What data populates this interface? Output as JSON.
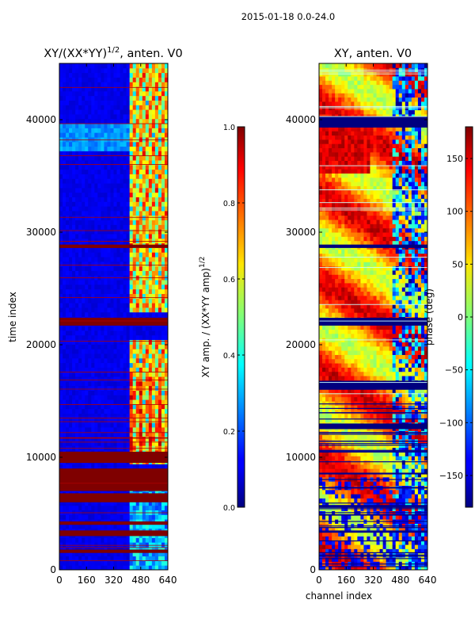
{
  "chart_data": [
    {
      "type": "heatmap",
      "title": "XY/(XX*YY)",
      "title_sup": "1/2",
      "title_suffix": ", anten. V0",
      "xlabel": "",
      "ylabel": "time index",
      "xlim": [
        0,
        640
      ],
      "ylim": [
        0,
        45000
      ],
      "xticks": [
        "0",
        "160",
        "320",
        "480",
        "640"
      ],
      "yticks": [
        "0",
        "10000",
        "20000",
        "30000",
        "40000"
      ],
      "colorbar": {
        "label": "XY amp. / (XX*YY amp)",
        "label_sup": "1/2",
        "range": [
          0.0,
          1.0
        ],
        "ticks": [
          "0.0",
          "0.2",
          "0.4",
          "0.6",
          "0.8",
          "1.0"
        ],
        "colormap": "jet"
      },
      "flagged_time_bands": [
        [
          21700,
          22400
        ],
        [
          28600,
          28900
        ],
        [
          9500,
          10500
        ],
        [
          7000,
          9000
        ],
        [
          6000,
          6800
        ],
        [
          3000,
          3500
        ],
        [
          4000,
          4300
        ],
        [
          1500,
          1800
        ]
      ]
    },
    {
      "type": "heatmap",
      "title": "XY, anten. V0",
      "xlabel": "channel index",
      "ylabel": "",
      "xlim": [
        0,
        640
      ],
      "ylim": [
        0,
        45000
      ],
      "xticks": [
        "0",
        "160",
        "320",
        "480",
        "640"
      ],
      "yticks": [
        "0",
        "10000",
        "20000",
        "30000",
        "40000"
      ],
      "colorbar": {
        "label": "phase (deg)",
        "range": [
          -180,
          180
        ],
        "ticks": [
          "−150",
          "−100",
          "−50",
          "0",
          "50",
          "100",
          "150"
        ],
        "colormap": "jet"
      }
    }
  ],
  "figure": {
    "suptitle": "2015-01-18 0.0-24.0"
  }
}
